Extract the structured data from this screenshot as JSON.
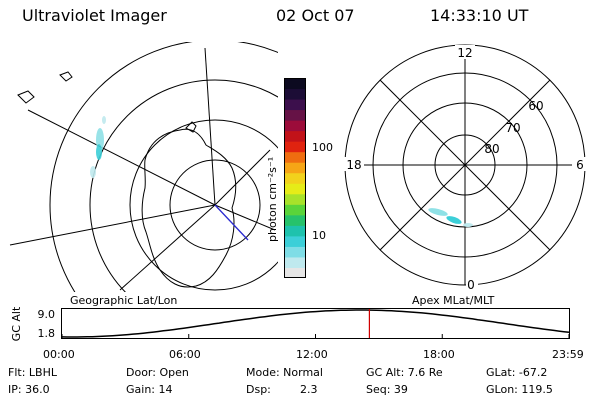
{
  "header": {
    "title": "Ultraviolet Imager",
    "date": "02 Oct 07",
    "time": "14:33:10 UT"
  },
  "colorbar": {
    "unit_label": "photon cm⁻²s⁻¹",
    "tick_100": "100",
    "tick_10": "10",
    "colors": [
      "#e6e6e6",
      "#bfe9ee",
      "#7fdde6",
      "#3ccfd8",
      "#1ec2ad",
      "#26c26b",
      "#5ad43a",
      "#a8e22a",
      "#e6ec18",
      "#f2d21c",
      "#f6a516",
      "#ef6d10",
      "#e0230f",
      "#c21219",
      "#9c0c3a",
      "#661246",
      "#3c0f4c",
      "#1c0d36",
      "#0c0a20"
    ]
  },
  "geo_panel": {
    "label": "Geographic Lat/Lon"
  },
  "mag_panel": {
    "label": "Apex MLat/MLT",
    "mlt_labels": {
      "top": "12",
      "left": "18",
      "right": "6",
      "bottom": "0"
    },
    "lat_labels": [
      "60",
      "70",
      "80"
    ]
  },
  "timeline": {
    "ylabel": "GC Alt",
    "ytick_high": "9.0",
    "ytick_low": "1.8",
    "xticks": [
      "00:00",
      "06:00",
      "12:00",
      "18:00",
      "23:59"
    ],
    "current_time_frac": 0.6063
  },
  "info": {
    "filt": "Flt: LBHL",
    "ip": "IP: 36.0",
    "door": "Door: Open",
    "gain": "Gain: 14",
    "mode": "Mode: Normal",
    "dsp_label": "Dsp:",
    "dsp_value": "2.3",
    "gcalt": "GC Alt: 7.6 Re",
    "seq": "Seq: 39",
    "glat": "GLat: -67.2",
    "glon": "GLon: 119.5"
  }
}
